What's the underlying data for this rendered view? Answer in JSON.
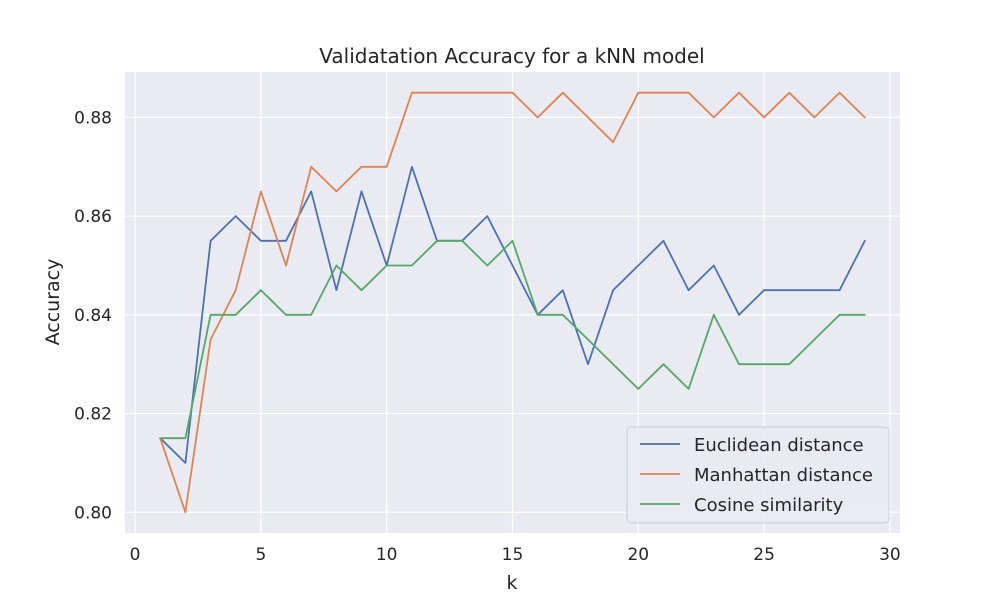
{
  "chart_data": {
    "type": "line",
    "title": "Validatation Accuracy for a kNN model",
    "xlabel": "k",
    "ylabel": "Accuracy",
    "xlim": [
      -0.4,
      30.4
    ],
    "ylim": [
      0.7958,
      0.8892
    ],
    "xticks": [
      0,
      5,
      10,
      15,
      20,
      25,
      30
    ],
    "xtick_labels": [
      "0",
      "5",
      "10",
      "15",
      "20",
      "25",
      "30"
    ],
    "yticks": [
      0.8,
      0.82,
      0.84,
      0.86,
      0.88
    ],
    "ytick_labels": [
      "0.80",
      "0.82",
      "0.84",
      "0.86",
      "0.88"
    ],
    "grid": true,
    "legend_position": "lower-right",
    "background": "#eaeaf2",
    "x": [
      1,
      2,
      3,
      4,
      5,
      6,
      7,
      8,
      9,
      10,
      11,
      12,
      13,
      14,
      15,
      16,
      17,
      18,
      19,
      20,
      21,
      22,
      23,
      24,
      25,
      26,
      27,
      28,
      29
    ],
    "series": [
      {
        "name": "Euclidean distance",
        "color": "#4c72b0",
        "values": [
          0.815,
          0.81,
          0.855,
          0.86,
          0.855,
          0.855,
          0.865,
          0.845,
          0.865,
          0.85,
          0.87,
          0.855,
          0.855,
          0.86,
          0.85,
          0.84,
          0.845,
          0.83,
          0.845,
          0.85,
          0.855,
          0.845,
          0.85,
          0.84,
          0.845,
          0.845,
          0.845,
          0.845,
          0.855
        ]
      },
      {
        "name": "Manhattan distance",
        "color": "#dd8452",
        "values": [
          0.815,
          0.8,
          0.835,
          0.845,
          0.865,
          0.85,
          0.87,
          0.865,
          0.87,
          0.87,
          0.885,
          0.885,
          0.885,
          0.885,
          0.885,
          0.88,
          0.885,
          0.88,
          0.875,
          0.885,
          0.885,
          0.885,
          0.88,
          0.885,
          0.88,
          0.885,
          0.88,
          0.885,
          0.88
        ]
      },
      {
        "name": "Cosine similarity",
        "color": "#55a868",
        "values": [
          0.815,
          0.815,
          0.84,
          0.84,
          0.845,
          0.84,
          0.84,
          0.85,
          0.845,
          0.85,
          0.85,
          0.855,
          0.855,
          0.85,
          0.855,
          0.84,
          0.84,
          0.835,
          0.83,
          0.825,
          0.83,
          0.825,
          0.84,
          0.83,
          0.83,
          0.83,
          0.835,
          0.84,
          0.84
        ]
      }
    ]
  }
}
